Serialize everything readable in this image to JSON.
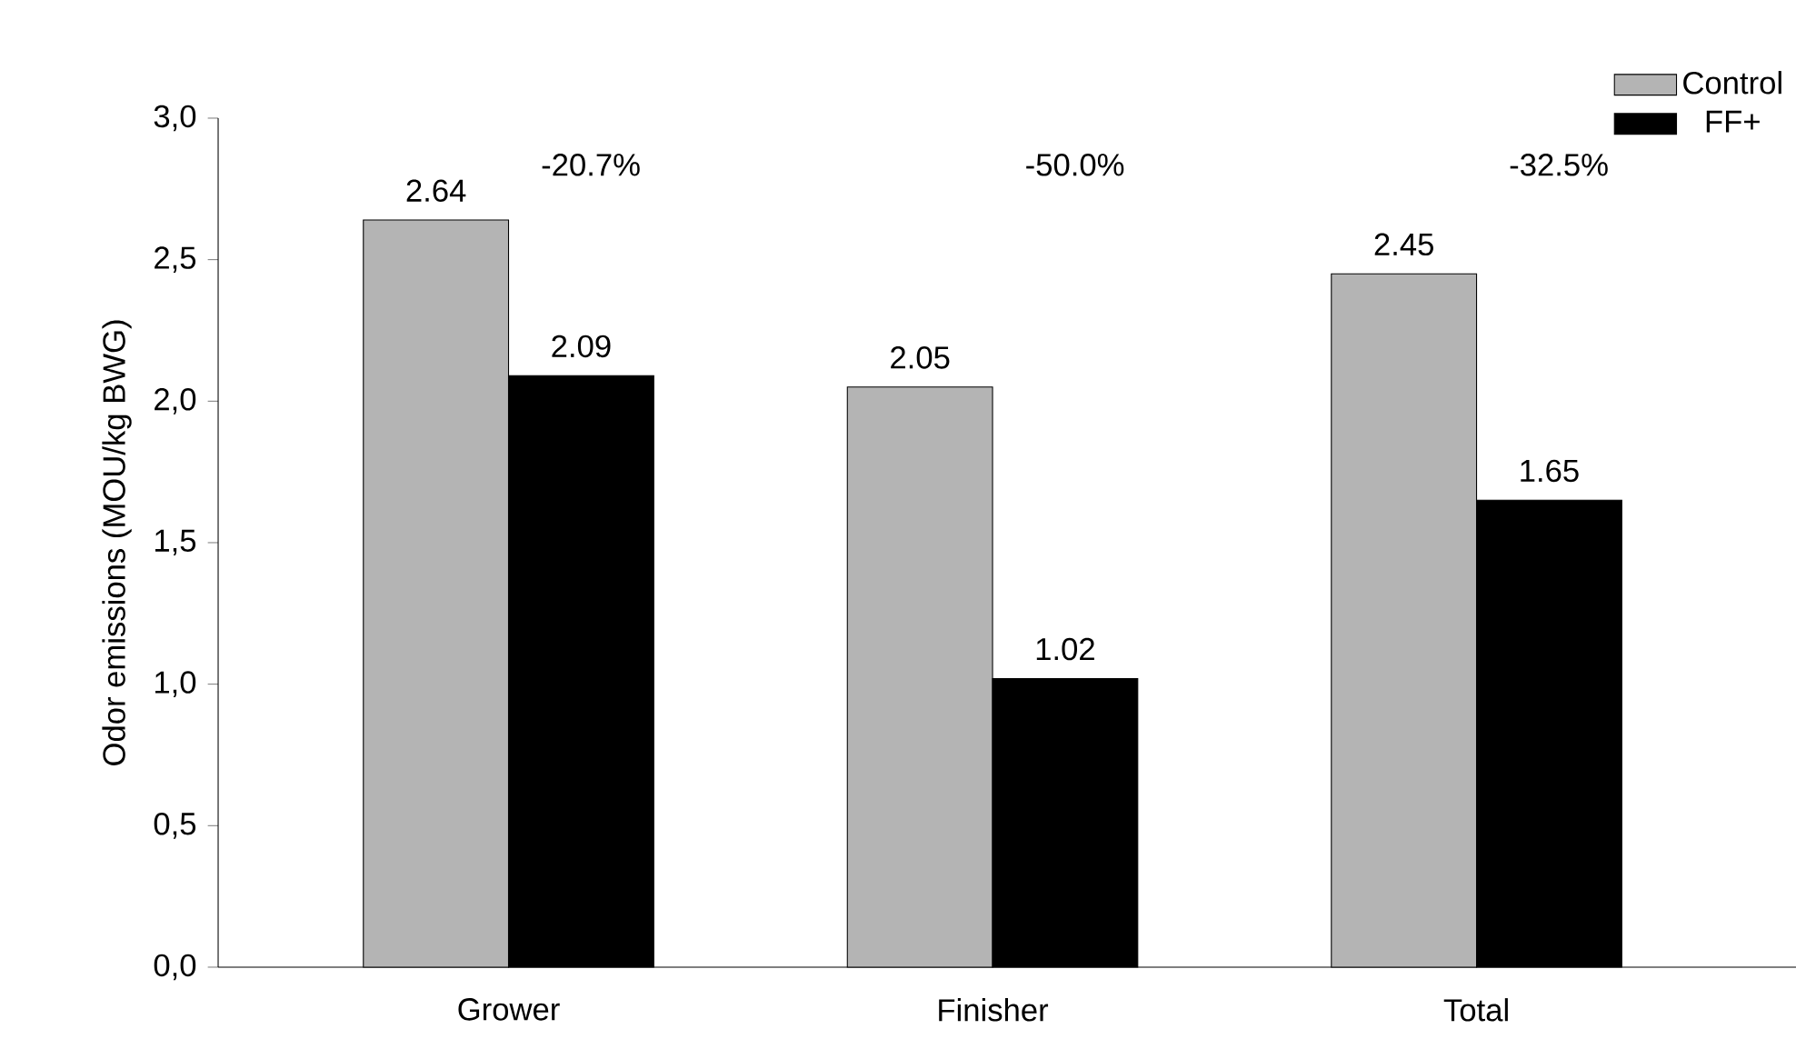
{
  "chart_data": {
    "type": "bar",
    "ylabel": "Odor emissions (MOU/kg BWG)",
    "categories": [
      "Grower",
      "Finisher",
      "Total"
    ],
    "series": [
      {
        "name": "Control",
        "color": "#b4b4b4",
        "values": [
          2.64,
          2.05,
          2.45
        ]
      },
      {
        "name": "FF+",
        "color": "#000000",
        "values": [
          2.09,
          1.02,
          1.65
        ]
      }
    ],
    "ylim": [
      0,
      3
    ],
    "yticks": [
      {
        "value": 0,
        "label": "0,0"
      },
      {
        "value": 0.5,
        "label": "0,5"
      },
      {
        "value": 1,
        "label": "1,0"
      },
      {
        "value": 1.5,
        "label": "1,5"
      },
      {
        "value": 2,
        "label": "2,0"
      },
      {
        "value": 2.5,
        "label": "2,5"
      },
      {
        "value": 3,
        "label": "3,0"
      }
    ],
    "annotations": [
      "-20.7%",
      "-50.0%",
      "-32.5%"
    ],
    "data_labels": true,
    "legend": "top right",
    "grid": false
  }
}
